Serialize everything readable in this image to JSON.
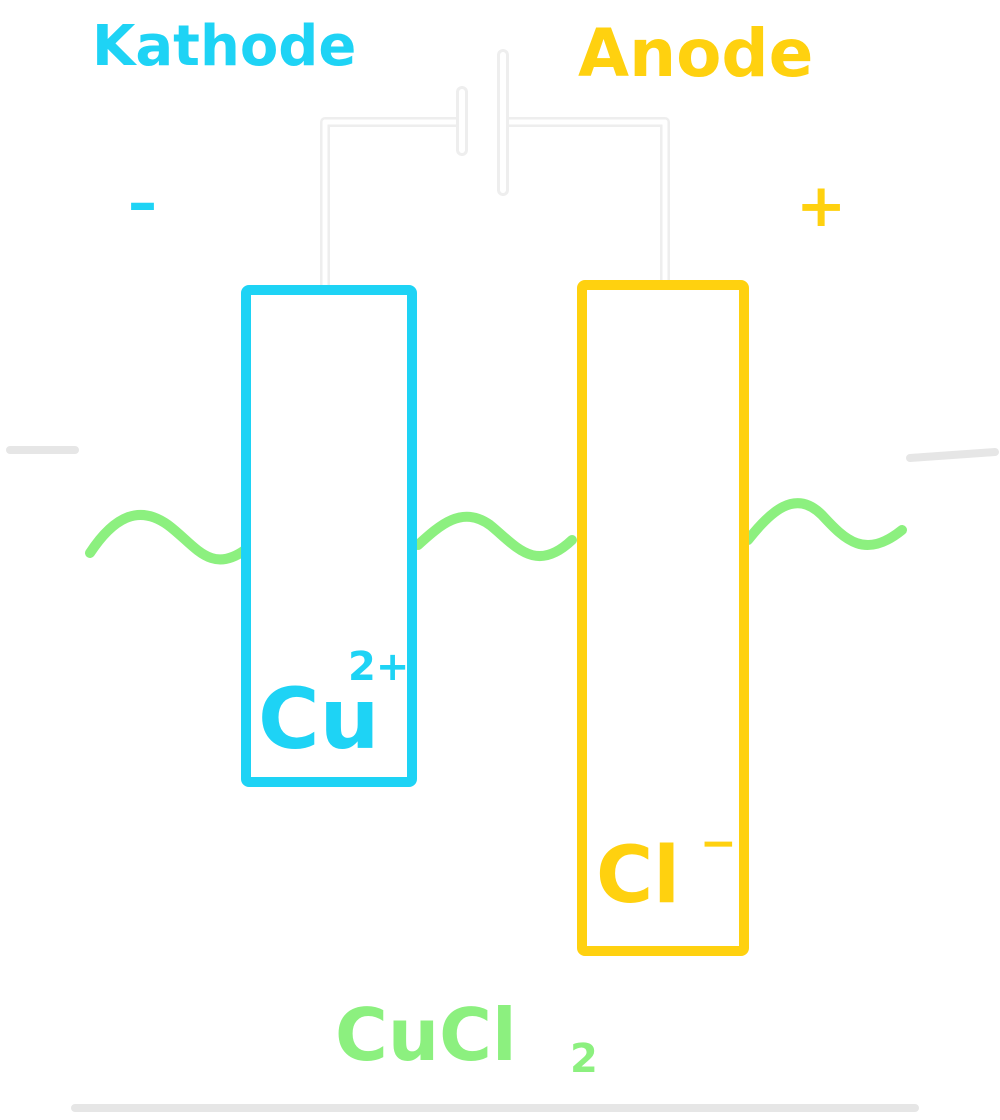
{
  "labels": {
    "cathode": "Kathode",
    "anode": "Anode",
    "cathode_sign": "–",
    "anode_sign": "+",
    "cathode_ion": "Cu",
    "cathode_ion_charge": "2+",
    "anode_ion": "Cl",
    "anode_ion_charge": "−",
    "electrolyte_main": "CuCl",
    "electrolyte_sub": "2"
  },
  "colors": {
    "background": "#ffffff",
    "cathode": "#1ed3f5",
    "anode": "#ffd10f",
    "electrolyte": "#8cf07f",
    "wire": "#f2f2f2",
    "beaker": "#ffffff"
  },
  "icons": {
    "battery": "battery-symbol-icon"
  }
}
